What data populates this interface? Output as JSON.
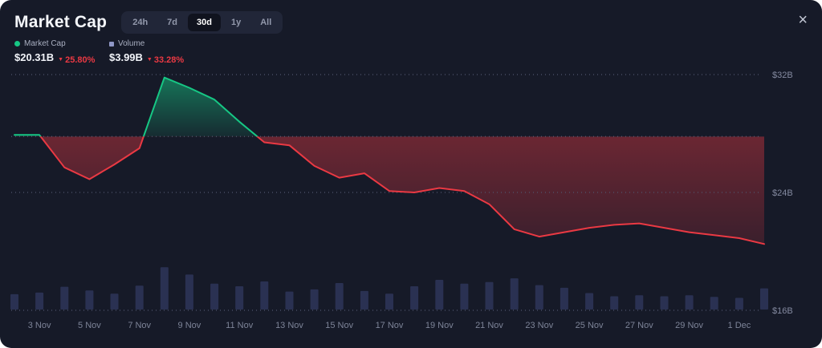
{
  "widget": {
    "title": "Market Cap"
  },
  "icons": {
    "down_arrow": "▼",
    "close": "×"
  },
  "tabs": [
    {
      "label": "24h",
      "selected": false
    },
    {
      "label": "7d",
      "selected": false
    },
    {
      "label": "30d",
      "selected": true
    },
    {
      "label": "1y",
      "selected": false
    },
    {
      "label": "All",
      "selected": false
    }
  ],
  "legend": [
    {
      "label": "Market Cap",
      "marker": "dot",
      "color": "#16c784"
    },
    {
      "label": "Volume",
      "marker": "square",
      "color": "#8f97c6"
    }
  ],
  "stats": [
    {
      "value": "$20.31B",
      "change": "25.80%",
      "direction": "down"
    },
    {
      "value": "$3.99B",
      "change": "33.28%",
      "direction": "down"
    }
  ],
  "chart_data": {
    "type": "line",
    "title": "Market Cap (30d)",
    "x": [
      "2 Nov",
      "3 Nov",
      "4 Nov",
      "5 Nov",
      "6 Nov",
      "7 Nov",
      "8 Nov",
      "9 Nov",
      "10 Nov",
      "11 Nov",
      "12 Nov",
      "13 Nov",
      "14 Nov",
      "15 Nov",
      "16 Nov",
      "17 Nov",
      "18 Nov",
      "19 Nov",
      "20 Nov",
      "21 Nov",
      "22 Nov",
      "23 Nov",
      "24 Nov",
      "25 Nov",
      "26 Nov",
      "27 Nov",
      "28 Nov",
      "29 Nov",
      "30 Nov",
      "1 Dec",
      "2 Dec"
    ],
    "series": [
      {
        "name": "Market Cap",
        "type": "area-line",
        "unit": "USD billions",
        "values": [
          27.9,
          27.9,
          25.7,
          24.9,
          25.9,
          27.0,
          31.8,
          31.1,
          30.3,
          28.8,
          27.4,
          27.2,
          25.8,
          25.0,
          25.3,
          24.1,
          24.0,
          24.3,
          24.1,
          23.2,
          21.5,
          21.0,
          21.3,
          21.6,
          21.8,
          21.9,
          21.6,
          21.3,
          21.1,
          20.9,
          20.5
        ]
      },
      {
        "name": "Volume",
        "type": "bar",
        "unit": "USD billions",
        "values": [
          2.9,
          3.2,
          4.3,
          3.6,
          3.0,
          4.5,
          8.0,
          6.6,
          4.9,
          4.4,
          5.3,
          3.4,
          3.8,
          5.0,
          3.5,
          3.0,
          4.4,
          5.6,
          4.9,
          5.2,
          5.9,
          4.6,
          4.1,
          3.1,
          2.5,
          2.7,
          2.5,
          2.7,
          2.4,
          2.2,
          4.0
        ]
      }
    ],
    "baseline_value": 27.8,
    "y_axis": {
      "tick_labels": [
        "$32B",
        "$24B",
        "$16B"
      ],
      "tick_values": [
        32,
        24,
        16
      ]
    },
    "x_tick_labels": [
      "3 Nov",
      "5 Nov",
      "7 Nov",
      "9 Nov",
      "11 Nov",
      "13 Nov",
      "15 Nov",
      "17 Nov",
      "19 Nov",
      "21 Nov",
      "23 Nov",
      "25 Nov",
      "27 Nov",
      "29 Nov",
      "1 Dec"
    ],
    "colors": {
      "up": "#16c784",
      "down": "#ea3943",
      "volume_bar": "#2a3152",
      "grid": "#51566e",
      "axis_text": "#848aa0"
    },
    "grid": "dotted-horizontal",
    "legend_position": "top-left"
  }
}
